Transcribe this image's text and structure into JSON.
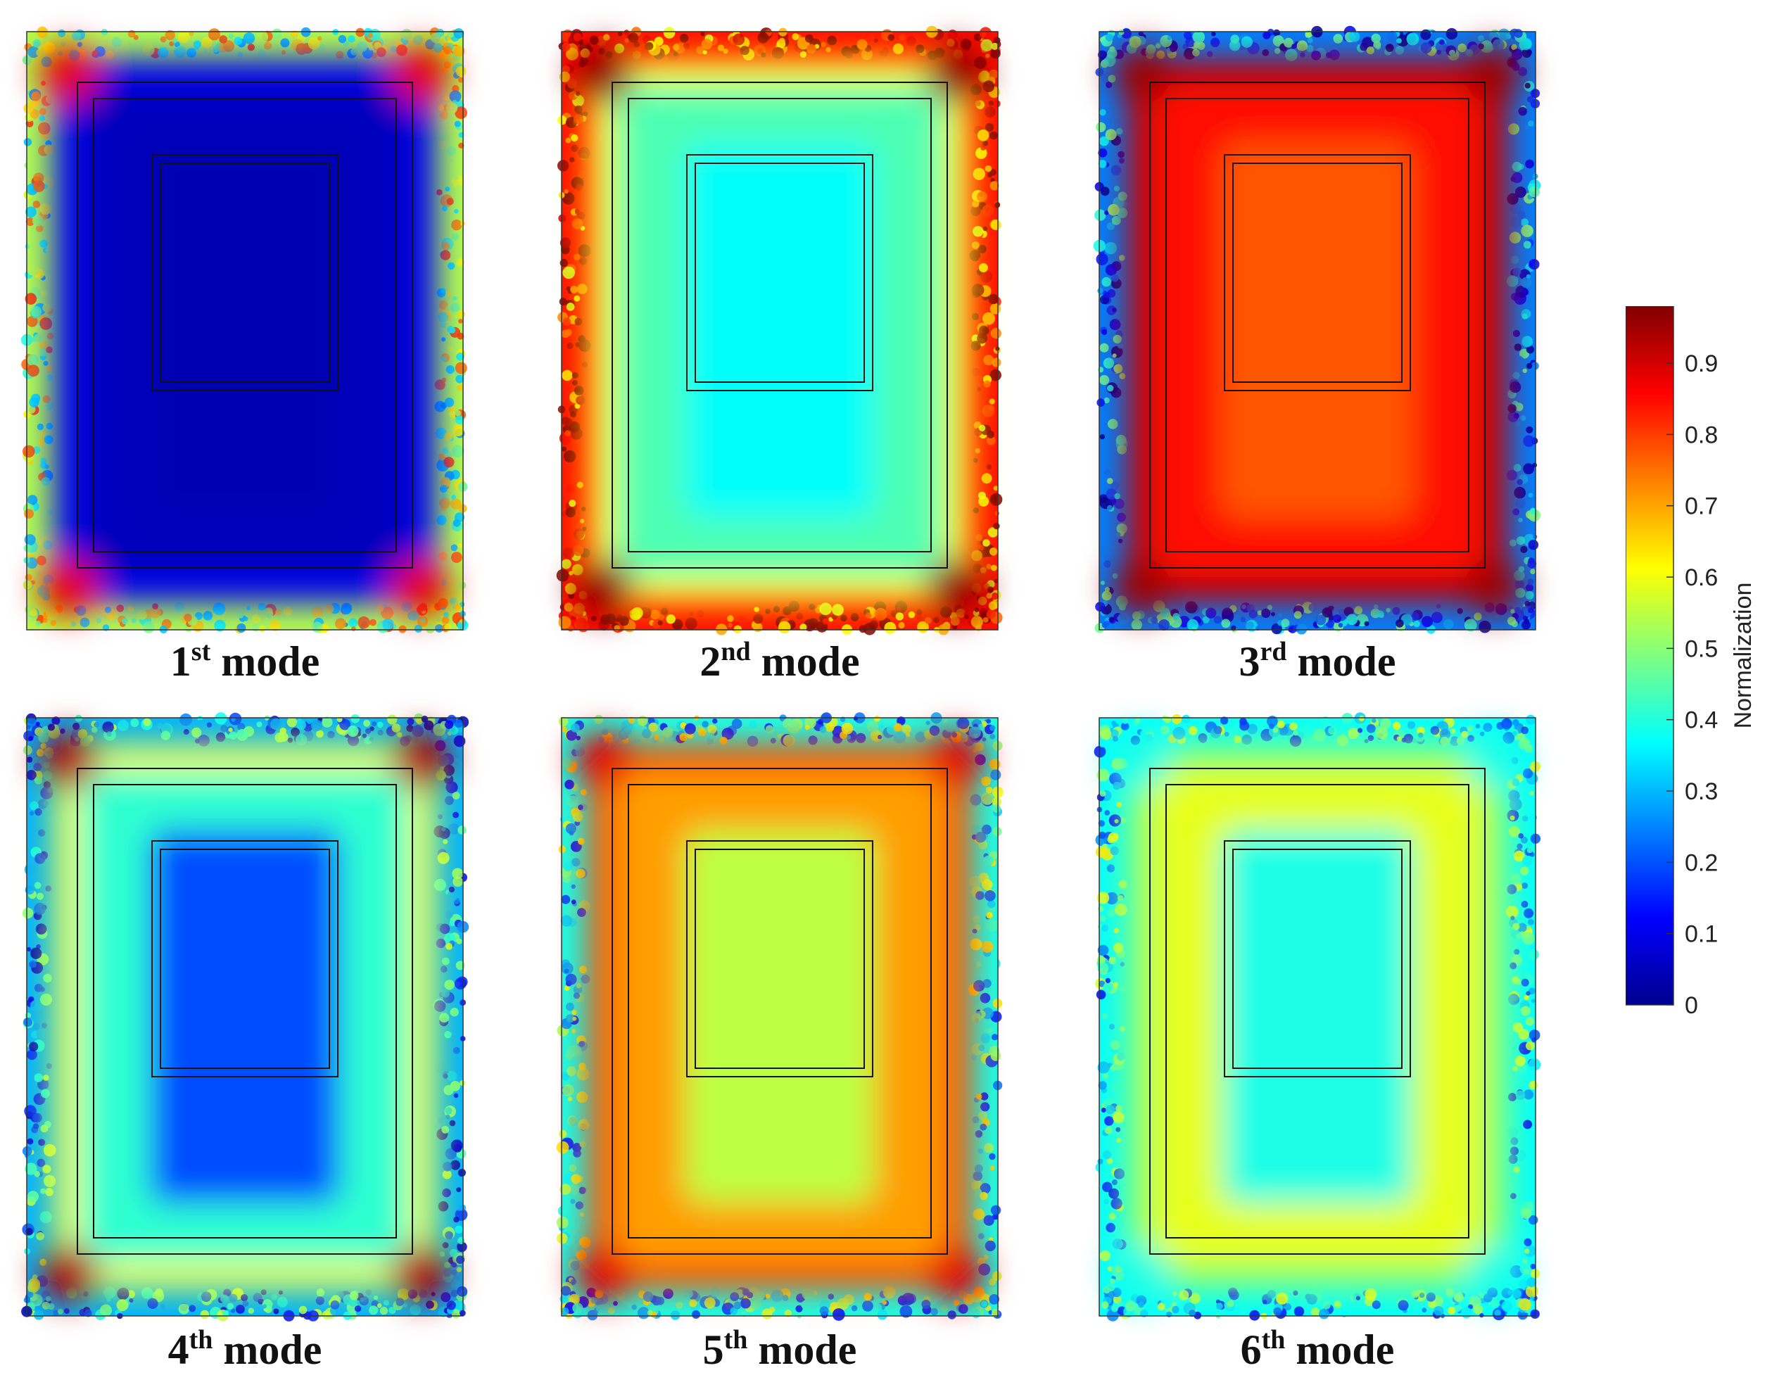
{
  "colormap": [
    "#00008F",
    "#0000FF",
    "#0080FF",
    "#00FFFF",
    "#80FF80",
    "#FFFF00",
    "#FF8000",
    "#FF0000",
    "#800000"
  ],
  "chart_data": [
    {
      "type": "heatmap",
      "panel": "1",
      "caption": {
        "ordinal": "1",
        "suffix": "st",
        "word": "mode"
      },
      "field": {
        "inner": 0.04,
        "mid": 0.05,
        "band": 0.12,
        "edge": 0.55,
        "corner": 0.9
      }
    },
    {
      "type": "heatmap",
      "panel": "2",
      "caption": {
        "ordinal": "2",
        "suffix": "nd",
        "word": "mode"
      },
      "field": {
        "inner": 0.38,
        "mid": 0.45,
        "band": 0.62,
        "edge": 0.86,
        "corner": 0.98
      }
    },
    {
      "type": "heatmap",
      "panel": "3",
      "caption": {
        "ordinal": "3",
        "suffix": "rd",
        "word": "mode"
      },
      "field": {
        "inner": 0.79,
        "mid": 0.86,
        "band": 0.95,
        "edge": 0.25,
        "corner": 0.97
      }
    },
    {
      "type": "heatmap",
      "panel": "4",
      "caption": {
        "ordinal": "4",
        "suffix": "th",
        "word": "mode"
      },
      "field": {
        "inner": 0.2,
        "mid": 0.42,
        "band": 0.62,
        "edge": 0.3,
        "corner": 0.95
      }
    },
    {
      "type": "heatmap",
      "panel": "5",
      "caption": {
        "ordinal": "5",
        "suffix": "th",
        "word": "mode"
      },
      "field": {
        "inner": 0.56,
        "mid": 0.72,
        "band": 0.82,
        "edge": 0.4,
        "corner": 0.9
      }
    },
    {
      "type": "heatmap",
      "panel": "6",
      "caption": {
        "ordinal": "6",
        "suffix": "th",
        "word": "mode"
      },
      "field": {
        "inner": 0.4,
        "mid": 0.6,
        "band": 0.52,
        "edge": 0.38,
        "corner": 0.4
      }
    }
  ],
  "colorbar": {
    "label": "Normalization",
    "range": [
      0,
      0.98
    ],
    "ticks": [
      "0",
      "0.1",
      "0.2",
      "0.3",
      "0.4",
      "0.5",
      "0.6",
      "0.7",
      "0.8",
      "0.9"
    ]
  }
}
